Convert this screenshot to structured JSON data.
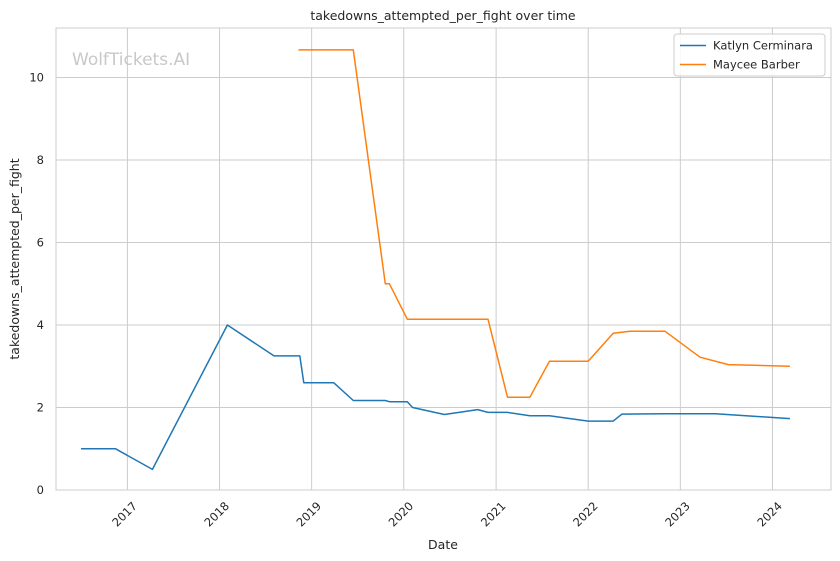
{
  "chart_data": {
    "type": "line",
    "title": "takedowns_attempted_per_fight over time",
    "xlabel": "Date",
    "ylabel": "takedowns_attempted_per_fight",
    "watermark": "WolfTickets.AI",
    "x_ticks": [
      "2017",
      "2018",
      "2019",
      "2020",
      "2021",
      "2022",
      "2023",
      "2024"
    ],
    "y_ticks": [
      "0",
      "2",
      "4",
      "6",
      "8",
      "10"
    ],
    "xlim": [
      "2016-03-24",
      "2024-08-20"
    ],
    "ylim": [
      0,
      11.2
    ],
    "grid": true,
    "legend_position": "top-right",
    "series": [
      {
        "name": "Katlyn Cerminara",
        "color": "#1f77b4",
        "points": [
          [
            "2016-07-01",
            1.0
          ],
          [
            "2016-11-15",
            1.0
          ],
          [
            "2017-04-10",
            0.5
          ],
          [
            "2018-02-01",
            4.0
          ],
          [
            "2018-08-05",
            3.25
          ],
          [
            "2018-11-15",
            3.25
          ],
          [
            "2018-12-01",
            2.6
          ],
          [
            "2019-03-30",
            2.6
          ],
          [
            "2019-06-15",
            2.17
          ],
          [
            "2019-10-20",
            2.17
          ],
          [
            "2019-11-05",
            2.14
          ],
          [
            "2020-01-15",
            2.14
          ],
          [
            "2020-02-05",
            2.0
          ],
          [
            "2020-06-10",
            1.83
          ],
          [
            "2020-10-20",
            1.95
          ],
          [
            "2020-11-30",
            1.88
          ],
          [
            "2021-02-15",
            1.88
          ],
          [
            "2021-05-15",
            1.8
          ],
          [
            "2021-07-31",
            1.8
          ],
          [
            "2022-01-01",
            1.67
          ],
          [
            "2022-04-10",
            1.67
          ],
          [
            "2022-05-15",
            1.84
          ],
          [
            "2022-11-01",
            1.85
          ],
          [
            "2023-05-20",
            1.85
          ],
          [
            "2024-03-10",
            1.73
          ]
        ]
      },
      {
        "name": "Maycee Barber",
        "color": "#ff7f0e",
        "points": [
          [
            "2018-11-10",
            10.67
          ],
          [
            "2019-06-15",
            10.67
          ],
          [
            "2019-10-20",
            5.0
          ],
          [
            "2019-11-05",
            5.0
          ],
          [
            "2020-01-15",
            4.14
          ],
          [
            "2020-11-30",
            4.14
          ],
          [
            "2021-02-15",
            2.25
          ],
          [
            "2021-05-15",
            2.25
          ],
          [
            "2021-07-31",
            3.12
          ],
          [
            "2022-01-01",
            3.12
          ],
          [
            "2022-04-10",
            3.8
          ],
          [
            "2022-06-15",
            3.85
          ],
          [
            "2022-11-01",
            3.85
          ],
          [
            "2023-03-20",
            3.22
          ],
          [
            "2023-07-10",
            3.04
          ],
          [
            "2024-03-10",
            3.0
          ]
        ]
      }
    ]
  }
}
